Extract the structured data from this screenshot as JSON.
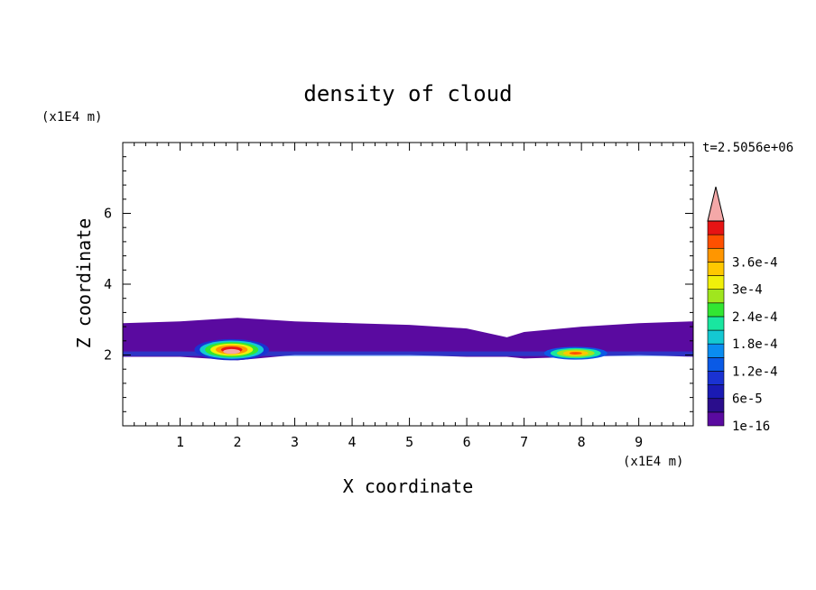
{
  "chart_data": {
    "type": "heatmap",
    "title": "density of cloud",
    "xlabel": "X coordinate",
    "ylabel": "Z coordinate",
    "x_unit": "(x1E4 m)",
    "y_unit": "(x1E4 m)",
    "time_label": "t=2.5056e+06",
    "xlim": [
      0,
      9.95
    ],
    "ylim": [
      0,
      8
    ],
    "x_ticks": [
      1,
      2,
      3,
      4,
      5,
      6,
      7,
      8,
      9
    ],
    "y_ticks": [
      2,
      4,
      6
    ],
    "colorbar": {
      "labels": [
        "1e-16",
        "6e-5",
        "1.2e-4",
        "1.8e-4",
        "2.4e-4",
        "3e-4",
        "3.6e-4"
      ],
      "levels": [
        1e-16,
        3e-05,
        6e-05,
        9e-05,
        0.00012,
        0.00015,
        0.00018,
        0.00021,
        0.00024,
        0.00027,
        0.0003,
        0.00033,
        0.00036,
        0.00039
      ],
      "colors": [
        "#5a0aa0",
        "#2a0d8c",
        "#1a1ab4",
        "#1a32d2",
        "#0a5ae6",
        "#0a8cf0",
        "#14c8d2",
        "#19e6a0",
        "#32e632",
        "#a0e61e",
        "#f0f00a",
        "#ffc800",
        "#ff9600",
        "#ff5000",
        "#e61414"
      ],
      "overflow_color": "#f4a8a8"
    },
    "cloud_layer": {
      "x": [
        0,
        1,
        2,
        3,
        4,
        5,
        6,
        6.7,
        7,
        8,
        9,
        9.95
      ],
      "top": [
        2.9,
        2.95,
        3.05,
        2.95,
        2.9,
        2.85,
        2.75,
        2.5,
        2.65,
        2.8,
        2.9,
        2.95
      ],
      "bottom": [
        1.95,
        1.95,
        1.85,
        2.0,
        2.0,
        2.0,
        1.95,
        1.95,
        1.9,
        1.95,
        2.0,
        1.95
      ]
    },
    "high_density_regions": [
      {
        "x_center": 1.9,
        "z_center": 2.15,
        "value_max": ">3.9e-4"
      },
      {
        "x_center": 7.9,
        "z_center": 2.05,
        "value_max": "3.6e-4"
      }
    ]
  }
}
